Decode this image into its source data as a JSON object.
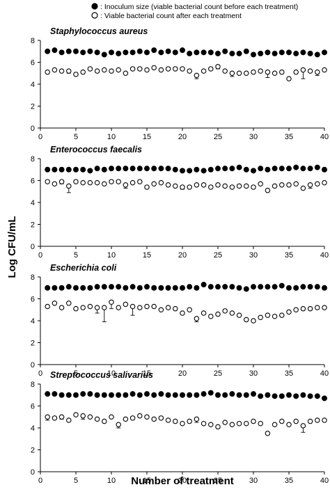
{
  "legend": [
    {
      "marker": "filled",
      "label": ": Inoculum size (viable bacterial count before each treatment)"
    },
    {
      "marker": "open",
      "label": ": Viable bacterial count after each treatment"
    }
  ],
  "xlabel": "Number of treatment",
  "ylabel": "Log CFU/mL",
  "colors": {
    "filled": "#000000",
    "open": "#ffffff",
    "axis": "#000000"
  },
  "chart_data": [
    {
      "type": "scatter",
      "title": "Staphylococcus aureus",
      "x": [
        1,
        2,
        3,
        4,
        5,
        6,
        7,
        8,
        9,
        10,
        11,
        12,
        13,
        14,
        15,
        16,
        17,
        18,
        19,
        20,
        21,
        22,
        23,
        24,
        25,
        26,
        27,
        28,
        29,
        30,
        31,
        32,
        33,
        34,
        35,
        36,
        37,
        38,
        39,
        40
      ],
      "xlim": [
        0,
        40
      ],
      "ylim": [
        0,
        8
      ],
      "xticks": [
        0,
        5,
        10,
        15,
        20,
        25,
        30,
        35,
        40
      ],
      "yticks": [
        0,
        2,
        4,
        6,
        8
      ],
      "grid": false,
      "series": [
        {
          "name": "Inoculum size (viable bacterial count before each treatment)",
          "marker": "filled",
          "values": [
            7.0,
            7.1,
            6.9,
            7.0,
            7.0,
            6.9,
            7.0,
            6.9,
            6.7,
            6.9,
            6.8,
            6.9,
            6.9,
            7.0,
            6.9,
            7.1,
            6.9,
            7.0,
            6.9,
            7.1,
            6.8,
            6.9,
            6.9,
            6.9,
            6.8,
            7.0,
            6.8,
            6.8,
            7.0,
            6.7,
            6.8,
            6.9,
            6.8,
            6.9,
            6.9,
            6.8,
            6.9,
            6.8,
            6.7,
            6.9
          ]
        },
        {
          "name": "Viable bacterial count after each treatment",
          "marker": "open",
          "values": [
            5.1,
            5.3,
            5.2,
            5.2,
            4.9,
            5.1,
            5.4,
            5.2,
            5.3,
            5.2,
            5.3,
            5.0,
            5.4,
            5.4,
            5.3,
            5.5,
            5.3,
            5.4,
            5.4,
            5.4,
            5.2,
            4.8,
            5.2,
            5.4,
            5.6,
            5.2,
            5.0,
            5.0,
            5.0,
            5.1,
            5.2,
            5.1,
            5.0,
            5.1,
            4.5,
            5.1,
            5.3,
            5.2,
            5.1,
            5.3
          ],
          "error": [
            0,
            0,
            0,
            0.2,
            0,
            0,
            0,
            0,
            0,
            0,
            0,
            0,
            0,
            0,
            0,
            0,
            0,
            0,
            0,
            0,
            0,
            0.3,
            0,
            0,
            0.2,
            0,
            0.3,
            0,
            0,
            0,
            0,
            0.5,
            0,
            0,
            0,
            0,
            0.8,
            0,
            0.3,
            0
          ]
        }
      ]
    },
    {
      "type": "scatter",
      "title": "Enterococcus faecalis",
      "x": [
        1,
        2,
        3,
        4,
        5,
        6,
        7,
        8,
        9,
        10,
        11,
        12,
        13,
        14,
        15,
        16,
        17,
        18,
        19,
        20,
        21,
        22,
        23,
        24,
        25,
        26,
        27,
        28,
        29,
        30,
        31,
        32,
        33,
        34,
        35,
        36,
        37,
        38,
        39,
        40
      ],
      "xlim": [
        0,
        40
      ],
      "ylim": [
        0,
        8
      ],
      "xticks": [
        0,
        5,
        10,
        15,
        20,
        25,
        30,
        35,
        40
      ],
      "yticks": [
        0,
        2,
        4,
        6,
        8
      ],
      "grid": false,
      "series": [
        {
          "name": "Inoculum size (viable bacterial count before each treatment)",
          "marker": "filled",
          "values": [
            7.0,
            7.0,
            7.0,
            7.0,
            7.0,
            7.0,
            6.9,
            7.1,
            7.0,
            7.1,
            7.1,
            7.1,
            7.1,
            7.1,
            7.1,
            7.1,
            7.1,
            7.1,
            7.0,
            6.9,
            6.9,
            7.0,
            6.9,
            7.0,
            7.1,
            7.1,
            7.1,
            7.2,
            7.0,
            6.9,
            7.1,
            7.0,
            7.1,
            7.1,
            7.1,
            7.2,
            7.1,
            7.1,
            7.2,
            7.0
          ]
        },
        {
          "name": "Viable bacterial count after each treatment",
          "marker": "open",
          "values": [
            5.9,
            5.7,
            5.9,
            5.5,
            5.9,
            5.8,
            5.8,
            5.8,
            5.7,
            5.9,
            5.9,
            5.6,
            5.8,
            5.9,
            5.4,
            5.7,
            5.8,
            5.6,
            5.5,
            5.4,
            5.4,
            5.6,
            5.6,
            5.4,
            5.6,
            5.5,
            5.4,
            5.5,
            5.5,
            5.4,
            5.7,
            5.1,
            5.5,
            5.6,
            5.6,
            5.7,
            5.3,
            5.6,
            5.7,
            5.8
          ],
          "error": [
            0,
            0,
            0.2,
            0.6,
            0,
            0,
            0,
            0,
            0,
            0,
            0,
            0.3,
            0,
            0,
            0,
            0,
            0,
            0,
            0,
            0.2,
            0,
            0,
            0,
            0,
            0,
            0,
            0,
            0,
            0,
            0,
            0,
            0,
            0,
            0,
            0,
            0,
            0,
            0.3,
            0,
            0
          ]
        }
      ]
    },
    {
      "type": "scatter",
      "title": "Escherichia coli",
      "x": [
        1,
        2,
        3,
        4,
        5,
        6,
        7,
        8,
        9,
        10,
        11,
        12,
        13,
        14,
        15,
        16,
        17,
        18,
        19,
        20,
        21,
        22,
        23,
        24,
        25,
        26,
        27,
        28,
        29,
        30,
        31,
        32,
        33,
        34,
        35,
        36,
        37,
        38,
        39,
        40
      ],
      "xlim": [
        0,
        40
      ],
      "ylim": [
        0,
        8
      ],
      "xticks": [
        0,
        5,
        10,
        15,
        20,
        25,
        30,
        35,
        40
      ],
      "yticks": [
        0,
        2,
        4,
        6,
        8
      ],
      "grid": false,
      "series": [
        {
          "name": "Inoculum size (viable bacterial count before each treatment)",
          "marker": "filled",
          "values": [
            7.0,
            7.0,
            7.0,
            7.1,
            7.0,
            7.0,
            7.0,
            7.1,
            7.1,
            7.1,
            7.1,
            7.0,
            7.1,
            7.0,
            7.1,
            7.0,
            7.0,
            7.0,
            7.0,
            7.0,
            7.1,
            7.0,
            7.3,
            7.1,
            7.1,
            7.1,
            7.1,
            7.0,
            6.9,
            7.1,
            7.1,
            7.1,
            7.1,
            7.2,
            7.0,
            7.0,
            7.1,
            7.1,
            7.1,
            7.0
          ]
        },
        {
          "name": "Viable bacterial count after each treatment",
          "marker": "open",
          "values": [
            5.3,
            5.6,
            5.2,
            5.6,
            5.1,
            5.2,
            5.3,
            5.2,
            5.2,
            5.7,
            5.2,
            5.5,
            5.3,
            5.2,
            5.3,
            5.3,
            5.0,
            5.2,
            5.1,
            4.7,
            5.0,
            4.2,
            4.7,
            4.4,
            4.6,
            4.9,
            4.7,
            4.5,
            4.1,
            4.0,
            4.3,
            4.5,
            4.4,
            4.5,
            4.8,
            5.0,
            5.1,
            5.1,
            5.2,
            5.2
          ],
          "error": [
            0,
            0,
            0,
            0,
            0,
            0,
            0,
            0.5,
            1.3,
            0.6,
            0,
            0,
            0.8,
            0,
            0,
            0,
            0,
            0,
            0,
            0,
            0,
            0.3,
            0,
            0,
            0,
            0,
            0,
            0,
            0,
            0,
            0,
            0,
            0,
            0,
            0,
            0,
            0,
            0,
            0,
            0
          ]
        }
      ]
    },
    {
      "type": "scatter",
      "title": "Streptococcus salivarius",
      "x": [
        1,
        2,
        3,
        4,
        5,
        6,
        7,
        8,
        9,
        10,
        11,
        12,
        13,
        14,
        15,
        16,
        17,
        18,
        19,
        20,
        21,
        22,
        23,
        24,
        25,
        26,
        27,
        28,
        29,
        30,
        31,
        32,
        33,
        34,
        35,
        36,
        37,
        38,
        39,
        40
      ],
      "xlim": [
        0,
        40
      ],
      "ylim": [
        0,
        8
      ],
      "xticks": [
        0,
        5,
        10,
        15,
        20,
        25,
        30,
        35,
        40
      ],
      "yticks": [
        0,
        2,
        4,
        6,
        8
      ],
      "grid": false,
      "series": [
        {
          "name": "Inoculum size (viable bacterial count before each treatment)",
          "marker": "filled",
          "values": [
            7.1,
            7.1,
            7.0,
            7.0,
            7.0,
            7.1,
            7.1,
            7.0,
            7.0,
            7.0,
            7.0,
            7.0,
            7.1,
            7.0,
            7.1,
            7.0,
            7.1,
            7.0,
            7.0,
            7.0,
            7.0,
            7.0,
            7.1,
            7.2,
            7.0,
            7.0,
            7.1,
            7.0,
            7.0,
            7.1,
            6.9,
            7.0,
            6.9,
            6.9,
            7.0,
            6.9,
            7.0,
            6.9,
            6.9,
            6.7
          ]
        },
        {
          "name": "Viable bacterial count after each treatment",
          "marker": "open",
          "values": [
            5.0,
            4.9,
            5.0,
            4.7,
            5.2,
            5.1,
            5.0,
            4.8,
            4.6,
            5.0,
            4.3,
            4.8,
            4.9,
            5.1,
            5.0,
            4.8,
            4.9,
            4.7,
            4.6,
            4.4,
            4.6,
            4.8,
            4.4,
            4.3,
            4.1,
            4.5,
            4.3,
            4.4,
            4.4,
            4.6,
            4.4,
            3.5,
            4.3,
            4.6,
            4.3,
            4.6,
            4.2,
            4.6,
            4.7,
            4.7
          ],
          "error": [
            0.3,
            0,
            0.2,
            0,
            0,
            0.3,
            0,
            0,
            0,
            0,
            0.3,
            0,
            0,
            0,
            0,
            0,
            0,
            0,
            0,
            0,
            0,
            0.3,
            0,
            0,
            0,
            0,
            0,
            0,
            0,
            0,
            0,
            0,
            0,
            0,
            0,
            0,
            0.6,
            0,
            0,
            0
          ]
        }
      ]
    }
  ]
}
